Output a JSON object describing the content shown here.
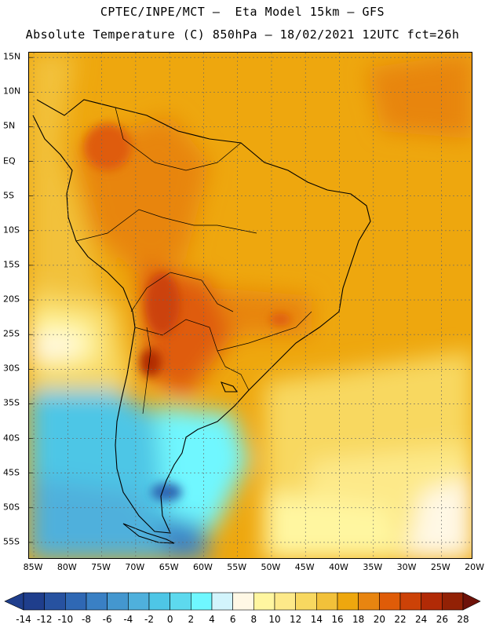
{
  "header": {
    "line1": "CPTEC/INPE/MCT –  Eta Model 15km – GFS",
    "line2": "Absolute Temperature (C) 850hPa – 18/02/2021 12UTC fct=26h"
  },
  "map": {
    "lat_labels": [
      "15N",
      "10N",
      "5N",
      "EQ",
      "5S",
      "10S",
      "15S",
      "20S",
      "25S",
      "30S",
      "35S",
      "40S",
      "45S",
      "50S",
      "55S"
    ],
    "lon_labels": [
      "85W",
      "80W",
      "75W",
      "70W",
      "65W",
      "60W",
      "55W",
      "50W",
      "45W",
      "40W",
      "35W",
      "30W",
      "25W",
      "20W"
    ],
    "lat_values": [
      15,
      10,
      5,
      0,
      -5,
      -10,
      -15,
      -20,
      -25,
      -30,
      -35,
      -40,
      -45,
      -50,
      -55
    ],
    "lon_values": [
      -85,
      -80,
      -75,
      -70,
      -65,
      -60,
      -55,
      -50,
      -45,
      -40,
      -35,
      -30,
      -25,
      -20
    ],
    "lat_range": [
      15.7,
      -57.5
    ],
    "lon_range": [
      -85.7,
      -20.3
    ]
  },
  "colorbar": {
    "labels": [
      "-14",
      "-12",
      "-10",
      "-8",
      "-6",
      "-4",
      "-2",
      "0",
      "2",
      "4",
      "6",
      "8",
      "10",
      "12",
      "14",
      "16",
      "18",
      "20",
      "22",
      "24",
      "26",
      "28"
    ],
    "colors": [
      "#1f3e8c",
      "#2752a0",
      "#2f68b4",
      "#3a80c4",
      "#4497cf",
      "#4fb0dc",
      "#4ec6e6",
      "#5dd9ee",
      "#6ff7ff",
      "#d2f4fc",
      "#fff8e5",
      "#fff6a0",
      "#fde989",
      "#f8d860",
      "#f2c13a",
      "#eea70e",
      "#e88510",
      "#df5c08",
      "#cc4207",
      "#b12a06",
      "#922105",
      "#6e1a15"
    ],
    "under_color": "#1f3e8c",
    "over_color": "#6e1209"
  },
  "chart_data": {
    "type": "heatmap",
    "title": "Absolute Temperature (C) 850hPa – 18/02/2021 12UTC fct=26h",
    "variable": "Air temperature at 850 hPa (°C)",
    "region": "South America, 15N–57S, 85W–20W",
    "regions": [
      {
        "area": "Equatorial Atlantic and Amazon basin",
        "temperature_c": 18
      },
      {
        "area": "Colombia and Venezuela",
        "temperature_c": 20
      },
      {
        "area": "Central Brazil and Bolivia",
        "temperature_c": 20
      },
      {
        "area": "Northern Argentina and Paraguay (Chaco)",
        "temperature_c": 22
      },
      {
        "area": "Uruguay and Southern Brazil",
        "temperature_c": 18
      },
      {
        "area": "Central Atlantic south of 30S",
        "temperature_c": 14
      },
      {
        "area": "Pacific off Chile north of 30S",
        "temperature_c": 10
      },
      {
        "area": "Patagonia",
        "temperature_c": -2
      },
      {
        "area": "Southern Chile and Pacific south of 40S",
        "temperature_c": -6
      },
      {
        "area": "South Atlantic south of 45S",
        "temperature_c": 8
      }
    ]
  }
}
